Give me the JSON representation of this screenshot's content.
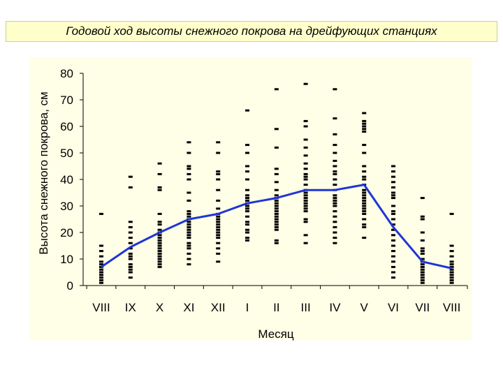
{
  "title": "Годовой ход высоты снежного покрова на дрейфующих станциях",
  "colors": {
    "title_bg": "#ffffcc",
    "plot_bg": "#fffee6",
    "line": "#1f35d6",
    "points": "#000000"
  },
  "chart_data": {
    "type": "scatter",
    "title": "Годовой ход высоты снежного покрова на дрейфующих станциях",
    "xlabel": "Месяц",
    "ylabel": "Высота снежного покрова, см",
    "categories": [
      "VIII",
      "IX",
      "X",
      "XI",
      "XII",
      "I",
      "II",
      "III",
      "IV",
      "V",
      "VI",
      "VII",
      "VIII"
    ],
    "ylim": [
      0,
      80
    ],
    "yticks": [
      0,
      10,
      20,
      30,
      40,
      50,
      60,
      70,
      80
    ],
    "grid": false,
    "legend": "none",
    "points": [
      [
        0,
        27
      ],
      [
        0,
        15
      ],
      [
        0,
        13
      ],
      [
        0,
        11
      ],
      [
        0,
        9
      ],
      [
        0,
        8
      ],
      [
        0,
        7
      ],
      [
        0,
        6
      ],
      [
        0,
        5
      ],
      [
        0,
        4
      ],
      [
        0,
        3
      ],
      [
        0,
        2
      ],
      [
        0,
        1
      ],
      [
        1,
        41
      ],
      [
        1,
        37
      ],
      [
        1,
        24
      ],
      [
        1,
        22
      ],
      [
        1,
        20
      ],
      [
        1,
        18
      ],
      [
        1,
        16
      ],
      [
        1,
        14
      ],
      [
        1,
        12
      ],
      [
        1,
        11
      ],
      [
        1,
        10
      ],
      [
        1,
        8
      ],
      [
        1,
        7
      ],
      [
        1,
        6
      ],
      [
        1,
        5
      ],
      [
        1,
        3
      ],
      [
        2,
        46
      ],
      [
        2,
        42
      ],
      [
        2,
        37
      ],
      [
        2,
        36
      ],
      [
        2,
        27
      ],
      [
        2,
        24
      ],
      [
        2,
        23
      ],
      [
        2,
        21
      ],
      [
        2,
        20
      ],
      [
        2,
        19
      ],
      [
        2,
        18
      ],
      [
        2,
        17
      ],
      [
        2,
        16
      ],
      [
        2,
        15
      ],
      [
        2,
        14
      ],
      [
        2,
        13
      ],
      [
        2,
        12
      ],
      [
        2,
        11
      ],
      [
        2,
        10
      ],
      [
        2,
        9
      ],
      [
        2,
        8
      ],
      [
        2,
        7
      ],
      [
        3,
        54
      ],
      [
        3,
        50
      ],
      [
        3,
        45
      ],
      [
        3,
        44
      ],
      [
        3,
        42
      ],
      [
        3,
        40
      ],
      [
        3,
        35
      ],
      [
        3,
        32
      ],
      [
        3,
        28
      ],
      [
        3,
        27
      ],
      [
        3,
        26
      ],
      [
        3,
        25
      ],
      [
        3,
        24
      ],
      [
        3,
        23
      ],
      [
        3,
        22
      ],
      [
        3,
        21
      ],
      [
        3,
        20
      ],
      [
        3,
        19
      ],
      [
        3,
        18
      ],
      [
        3,
        16
      ],
      [
        3,
        15
      ],
      [
        3,
        14
      ],
      [
        3,
        12
      ],
      [
        3,
        10
      ],
      [
        3,
        8
      ],
      [
        4,
        54
      ],
      [
        4,
        50
      ],
      [
        4,
        43
      ],
      [
        4,
        42
      ],
      [
        4,
        40
      ],
      [
        4,
        36
      ],
      [
        4,
        32
      ],
      [
        4,
        29
      ],
      [
        4,
        27
      ],
      [
        4,
        26
      ],
      [
        4,
        25
      ],
      [
        4,
        24
      ],
      [
        4,
        23
      ],
      [
        4,
        22
      ],
      [
        4,
        21
      ],
      [
        4,
        20
      ],
      [
        4,
        19
      ],
      [
        4,
        18
      ],
      [
        4,
        16
      ],
      [
        4,
        14
      ],
      [
        4,
        12
      ],
      [
        4,
        9
      ],
      [
        5,
        66
      ],
      [
        5,
        53
      ],
      [
        5,
        50
      ],
      [
        5,
        45
      ],
      [
        5,
        43
      ],
      [
        5,
        40
      ],
      [
        5,
        36
      ],
      [
        5,
        34
      ],
      [
        5,
        33
      ],
      [
        5,
        32
      ],
      [
        5,
        31
      ],
      [
        5,
        30
      ],
      [
        5,
        29
      ],
      [
        5,
        28
      ],
      [
        5,
        26
      ],
      [
        5,
        24
      ],
      [
        5,
        23
      ],
      [
        5,
        21
      ],
      [
        5,
        20
      ],
      [
        5,
        18
      ],
      [
        5,
        17
      ],
      [
        6,
        74
      ],
      [
        6,
        59
      ],
      [
        6,
        52
      ],
      [
        6,
        44
      ],
      [
        6,
        42
      ],
      [
        6,
        39
      ],
      [
        6,
        36
      ],
      [
        6,
        34
      ],
      [
        6,
        33
      ],
      [
        6,
        32
      ],
      [
        6,
        31
      ],
      [
        6,
        30
      ],
      [
        6,
        29
      ],
      [
        6,
        28
      ],
      [
        6,
        27
      ],
      [
        6,
        26
      ],
      [
        6,
        25
      ],
      [
        6,
        24
      ],
      [
        6,
        23
      ],
      [
        6,
        22
      ],
      [
        6,
        21
      ],
      [
        6,
        17
      ],
      [
        6,
        16
      ],
      [
        7,
        76
      ],
      [
        7,
        62
      ],
      [
        7,
        60
      ],
      [
        7,
        55
      ],
      [
        7,
        52
      ],
      [
        7,
        49
      ],
      [
        7,
        46
      ],
      [
        7,
        44
      ],
      [
        7,
        42
      ],
      [
        7,
        41
      ],
      [
        7,
        40
      ],
      [
        7,
        38
      ],
      [
        7,
        36
      ],
      [
        7,
        35
      ],
      [
        7,
        34
      ],
      [
        7,
        33
      ],
      [
        7,
        32
      ],
      [
        7,
        31
      ],
      [
        7,
        30
      ],
      [
        7,
        29
      ],
      [
        7,
        28
      ],
      [
        7,
        25
      ],
      [
        7,
        24
      ],
      [
        7,
        19
      ],
      [
        7,
        16
      ],
      [
        8,
        74
      ],
      [
        8,
        63
      ],
      [
        8,
        57
      ],
      [
        8,
        53
      ],
      [
        8,
        50
      ],
      [
        8,
        47
      ],
      [
        8,
        45
      ],
      [
        8,
        43
      ],
      [
        8,
        42
      ],
      [
        8,
        40
      ],
      [
        8,
        38
      ],
      [
        8,
        36
      ],
      [
        8,
        34
      ],
      [
        8,
        33
      ],
      [
        8,
        32
      ],
      [
        8,
        31
      ],
      [
        8,
        30
      ],
      [
        8,
        28
      ],
      [
        8,
        26
      ],
      [
        8,
        24
      ],
      [
        8,
        22
      ],
      [
        8,
        20
      ],
      [
        8,
        18
      ],
      [
        8,
        16
      ],
      [
        9,
        65
      ],
      [
        9,
        62
      ],
      [
        9,
        61
      ],
      [
        9,
        60
      ],
      [
        9,
        59
      ],
      [
        9,
        58
      ],
      [
        9,
        53
      ],
      [
        9,
        50
      ],
      [
        9,
        45
      ],
      [
        9,
        43
      ],
      [
        9,
        41
      ],
      [
        9,
        40
      ],
      [
        9,
        38
      ],
      [
        9,
        36
      ],
      [
        9,
        35
      ],
      [
        9,
        34
      ],
      [
        9,
        33
      ],
      [
        9,
        32
      ],
      [
        9,
        31
      ],
      [
        9,
        30
      ],
      [
        9,
        29
      ],
      [
        9,
        28
      ],
      [
        9,
        27
      ],
      [
        9,
        25
      ],
      [
        9,
        23
      ],
      [
        9,
        22
      ],
      [
        9,
        18
      ],
      [
        10,
        45
      ],
      [
        10,
        43
      ],
      [
        10,
        41
      ],
      [
        10,
        39
      ],
      [
        10,
        37
      ],
      [
        10,
        35
      ],
      [
        10,
        34
      ],
      [
        10,
        33
      ],
      [
        10,
        30
      ],
      [
        10,
        28
      ],
      [
        10,
        27
      ],
      [
        10,
        25
      ],
      [
        10,
        23
      ],
      [
        10,
        21
      ],
      [
        10,
        19
      ],
      [
        10,
        17
      ],
      [
        10,
        15
      ],
      [
        10,
        13
      ],
      [
        10,
        11
      ],
      [
        10,
        9
      ],
      [
        10,
        7
      ],
      [
        10,
        5
      ],
      [
        10,
        3
      ],
      [
        11,
        33
      ],
      [
        11,
        26
      ],
      [
        11,
        25
      ],
      [
        11,
        20
      ],
      [
        11,
        17
      ],
      [
        11,
        14
      ],
      [
        11,
        13
      ],
      [
        11,
        12
      ],
      [
        11,
        10
      ],
      [
        11,
        9
      ],
      [
        11,
        8
      ],
      [
        11,
        7
      ],
      [
        11,
        6
      ],
      [
        11,
        5
      ],
      [
        11,
        4
      ],
      [
        11,
        3
      ],
      [
        11,
        2
      ],
      [
        11,
        1
      ],
      [
        12,
        27
      ],
      [
        12,
        15
      ],
      [
        12,
        13
      ],
      [
        12,
        11
      ],
      [
        12,
        9
      ],
      [
        12,
        8
      ],
      [
        12,
        7
      ],
      [
        12,
        6
      ],
      [
        12,
        5
      ],
      [
        12,
        4
      ],
      [
        12,
        3
      ],
      [
        12,
        2
      ],
      [
        12,
        1
      ]
    ],
    "series": [
      {
        "type": "line",
        "values": [
          7,
          14.5,
          20,
          25,
          27,
          31,
          33,
          36,
          36,
          38,
          22,
          9,
          6.5
        ]
      }
    ]
  }
}
